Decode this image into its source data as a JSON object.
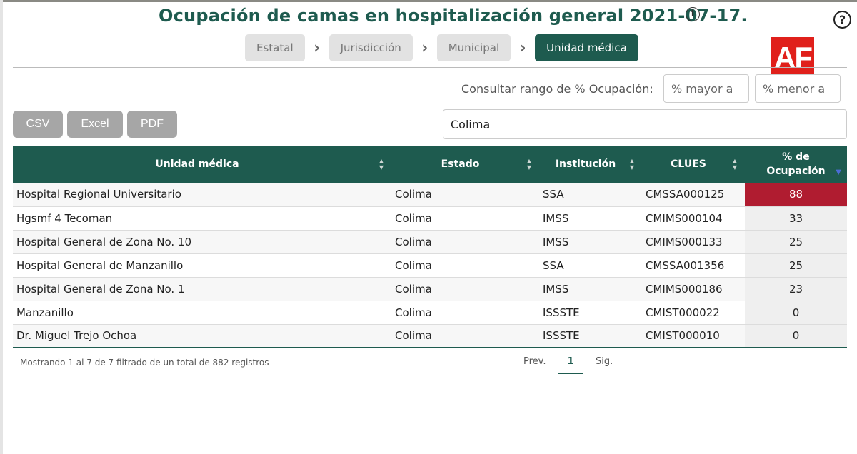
{
  "header": {
    "title": "Ocupación de camas en hospitalización general 2021-07-17.",
    "info_icon": "i",
    "help_icon": "?"
  },
  "breadcrumbs": [
    {
      "label": "Estatal",
      "active": false
    },
    {
      "label": "Jurisdicción",
      "active": false
    },
    {
      "label": "Municipal",
      "active": false
    },
    {
      "label": "Unidad médica",
      "active": true
    }
  ],
  "logo": {
    "text": "AF",
    "color": "#e0201b"
  },
  "filters": {
    "range_label": "Consultar rango de % Ocupación:",
    "min_placeholder": "% mayor a",
    "max_placeholder": "% menor a",
    "search_value": "Colima"
  },
  "export": {
    "csv": "CSV",
    "excel": "Excel",
    "pdf": "PDF"
  },
  "table": {
    "columns": [
      "Unidad médica",
      "Estado",
      "Institución",
      "CLUES",
      "% de Ocupación"
    ],
    "rows": [
      [
        "Hospital Regional Universitario",
        "Colima",
        "SSA",
        "CMSSA000125",
        "88"
      ],
      [
        "Hgsmf 4 Tecoman",
        "Colima",
        "IMSS",
        "CMIMS000104",
        "33"
      ],
      [
        "Hospital General de Zona No. 10",
        "Colima",
        "IMSS",
        "CMIMS000133",
        "25"
      ],
      [
        "Hospital General de Manzanillo",
        "Colima",
        "SSA",
        "CMSSA001356",
        "25"
      ],
      [
        "Hospital General de Zona No. 1",
        "Colima",
        "IMSS",
        "CMIMS000186",
        "23"
      ],
      [
        "Manzanillo",
        "Colima",
        "ISSSTE",
        "CMIST000022",
        "0"
      ],
      [
        "Dr. Miguel Trejo Ochoa",
        "Colima",
        "ISSSTE",
        "CMIST000010",
        "0"
      ]
    ],
    "high_color": "#b01c30"
  },
  "footer": {
    "records": "Mostrando 1 al 7 de 7 filtrado de un total de 882 registros",
    "prev": "Prev.",
    "page": "1",
    "next": "Sig."
  },
  "colors": {
    "primary": "#1e5b4f",
    "button_gray": "#a6a6a6"
  }
}
